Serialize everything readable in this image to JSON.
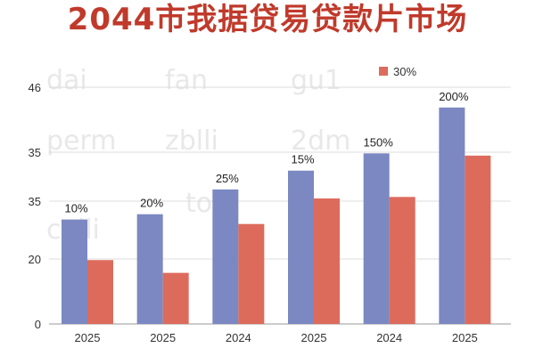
{
  "chart_data": {
    "type": "bar",
    "title": "2044市我据贷易贷款片市场",
    "categories": [
      "2025",
      "2025",
      "2024",
      "2025",
      "2024",
      "2025"
    ],
    "y_tick_labels": [
      "0",
      "20",
      "35",
      "35",
      "46"
    ],
    "series": [
      {
        "color": "#7b88c2",
        "values": [
          13.9,
          14.6,
          17.9,
          20.4,
          22.7,
          28.8
        ]
      },
      {
        "name": "30%",
        "color": "#dd6b5c",
        "values": [
          8.5,
          6.8,
          13.3,
          16.7,
          16.9,
          22.4
        ]
      }
    ],
    "data_labels": [
      "10%",
      "20%",
      "25%",
      "15%",
      "150%",
      "200%"
    ],
    "watermarks": [
      "dai",
      "fan",
      "gu1",
      "perm",
      "zblli",
      "2dm",
      "tom",
      "calli"
    ],
    "legend_position": "top-right",
    "grid": true
  }
}
